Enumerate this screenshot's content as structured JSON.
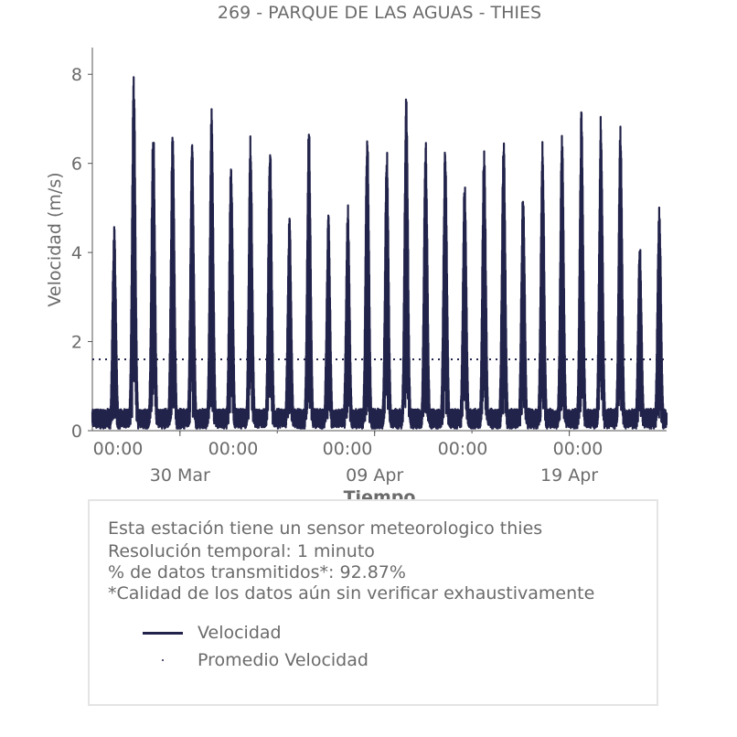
{
  "chart_data": {
    "type": "line",
    "title": "269 - PARQUE DE LAS AGUAS - THIES",
    "xlabel": "Tiempo",
    "ylabel": "Velocidad (m/s)",
    "ylim": [
      0,
      8.6
    ],
    "y_ticks": [
      "0",
      "2",
      "4",
      "6",
      "8"
    ],
    "x_range": [
      "2024-03-25T12:00",
      "2024-04-23T23:59"
    ],
    "x_tick_labels_time": [
      "00:00",
      "00:00",
      "00:00",
      "00:00",
      "00:00"
    ],
    "x_tick_labels_date": [
      "30 Mar",
      "09 Apr",
      "19 Apr"
    ],
    "grid": false,
    "series": [
      {
        "name": "Velocidad",
        "style": "solid-line",
        "color": "#22234a",
        "daily_peaks": [
          {
            "date": "2024-03-26",
            "max": 4.5
          },
          {
            "date": "2024-03-27",
            "max": 7.9
          },
          {
            "date": "2024-03-28",
            "max": 6.9
          },
          {
            "date": "2024-03-29",
            "max": 6.8
          },
          {
            "date": "2024-03-30",
            "max": 6.6
          },
          {
            "date": "2024-03-31",
            "max": 7.2
          },
          {
            "date": "2024-04-01",
            "max": 6.1
          },
          {
            "date": "2024-04-02",
            "max": 6.6
          },
          {
            "date": "2024-04-03",
            "max": 6.5
          },
          {
            "date": "2024-04-04",
            "max": 4.8
          },
          {
            "date": "2024-04-05",
            "max": 6.9
          },
          {
            "date": "2024-04-06",
            "max": 4.8
          },
          {
            "date": "2024-04-07",
            "max": 5.0
          },
          {
            "date": "2024-04-08",
            "max": 6.8
          },
          {
            "date": "2024-04-09",
            "max": 6.4
          },
          {
            "date": "2024-04-10",
            "max": 7.5
          },
          {
            "date": "2024-04-11",
            "max": 6.5
          },
          {
            "date": "2024-04-12",
            "max": 6.4
          },
          {
            "date": "2024-04-13",
            "max": 5.6
          },
          {
            "date": "2024-04-14",
            "max": 6.3
          },
          {
            "date": "2024-04-15",
            "max": 6.6
          },
          {
            "date": "2024-04-16",
            "max": 5.4
          },
          {
            "date": "2024-04-17",
            "max": 6.5
          },
          {
            "date": "2024-04-18",
            "max": 6.7
          },
          {
            "date": "2024-04-19",
            "max": 7.2
          },
          {
            "date": "2024-04-20",
            "max": 7.0
          },
          {
            "date": "2024-04-21",
            "max": 6.8
          },
          {
            "date": "2024-04-22",
            "max": 4.2
          },
          {
            "date": "2024-04-23",
            "max": 5.1
          }
        ]
      },
      {
        "name": "Promedio Velocidad",
        "style": "dotted-line",
        "color": "#22234a",
        "value": 1.6
      }
    ]
  },
  "info": {
    "line1": "Esta estación tiene un sensor meteorologico thies",
    "line2": "Resolución temporal: 1 minuto",
    "line3": "% de datos transmitidos*: 92.87%",
    "line4": "*Calidad de los datos aún sin verificar exhaustivamente"
  },
  "legend": {
    "velocidad": "Velocidad",
    "promedio": "Promedio Velocidad"
  },
  "colors": {
    "series": "#22234a",
    "text": "#6b6b6b",
    "axis": "#555555",
    "box_border": "#e4e4e4"
  }
}
